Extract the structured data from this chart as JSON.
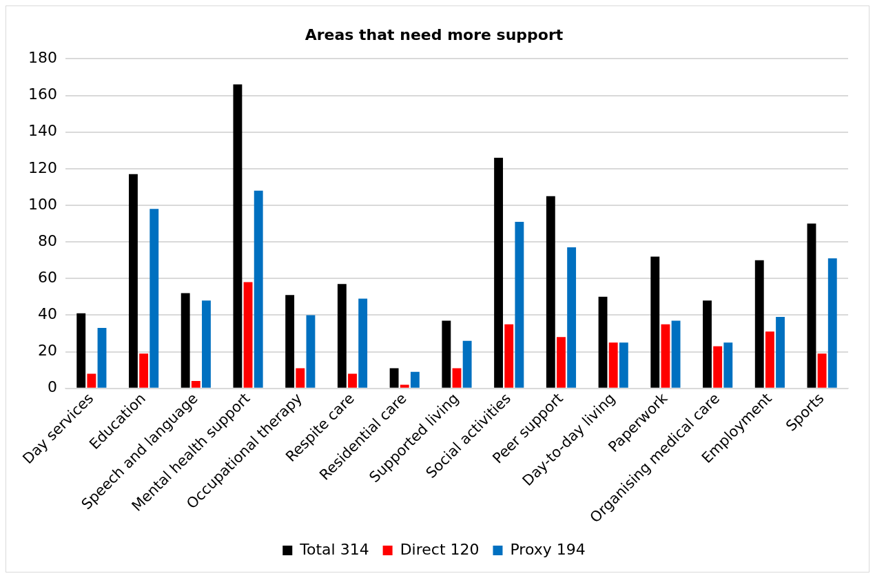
{
  "chart_data": {
    "type": "bar",
    "title": "Areas that need more support",
    "categories": [
      "Day services",
      "Education",
      "Speech and language",
      "Mental health support",
      "Occupational therapy",
      "Respite care",
      "Residential care",
      "Supported living",
      "Social activities",
      "Peer support",
      "Day-to-day living",
      "Paperwork",
      "Organising medical care",
      "Employment",
      "Sports"
    ],
    "series": [
      {
        "name": "Total 314",
        "color": "#000000",
        "values": [
          41,
          117,
          52,
          166,
          51,
          57,
          11,
          37,
          126,
          105,
          50,
          72,
          48,
          70,
          90
        ]
      },
      {
        "name": "Direct 120",
        "color": "#ff0000",
        "values": [
          8,
          19,
          4,
          58,
          11,
          8,
          2,
          11,
          35,
          28,
          25,
          35,
          23,
          31,
          19
        ]
      },
      {
        "name": "Proxy 194",
        "color": "#0070c0",
        "values": [
          33,
          98,
          48,
          108,
          40,
          49,
          9,
          26,
          91,
          77,
          25,
          37,
          25,
          39,
          71
        ]
      }
    ],
    "ylim": [
      0,
      180
    ],
    "yticks": [
      0,
      20,
      40,
      60,
      80,
      100,
      120,
      140,
      160,
      180
    ],
    "grid": "y",
    "legend": "bottom"
  }
}
